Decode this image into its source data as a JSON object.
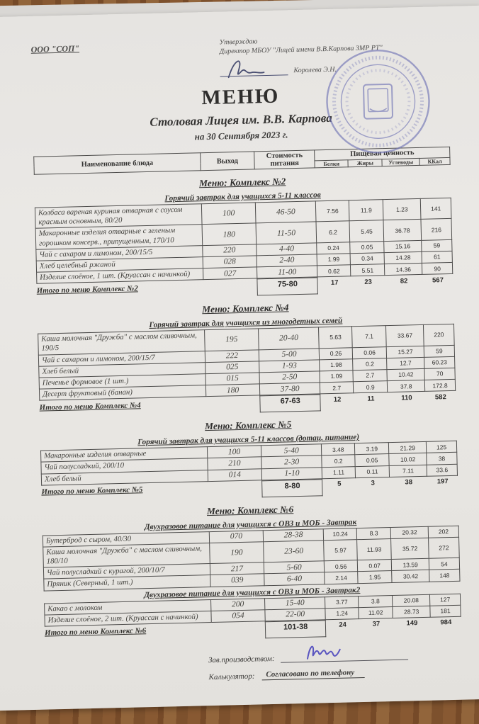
{
  "page": {
    "org": "ООО \"СОП\"",
    "approve": {
      "line1": "Утверждаю",
      "line2": "Директор МБОУ \"Лицей имени В.В.Карпова ЗМР РТ\"",
      "signed_by": "Королева Э.Н."
    },
    "title": "МЕНЮ",
    "subtitle": "Столовая Лицея им. В.В. Карпова",
    "date_line": "на 30 Сентября 2023 г."
  },
  "table_header": {
    "name": "Наименование блюда",
    "out": "Выход",
    "cost": "Стоимость питания",
    "nutrition": "Пищевая ценность",
    "nutrition_cols": [
      "Белки",
      "Жиры",
      "Углеводы",
      "ККал"
    ]
  },
  "menus": [
    {
      "title": "Меню: Комплекс №2",
      "sections": [
        {
          "subtitle": "Горячий завтрак для учащихся 5-11 классов",
          "rows": [
            [
              "Колбаса вареная куриная отварная с соусом красным основным, 80/20",
              "100",
              "46-50",
              "7.56",
              "11.9",
              "1.23",
              "141"
            ],
            [
              "Макаронные изделия отварные с зеленым горошком консерв., припущенным, 170/10",
              "180",
              "11-50",
              "6.2",
              "5.45",
              "36.78",
              "216"
            ],
            [
              "Чай с сахаром и лимоном, 200/15/5",
              "220",
              "4-40",
              "0.24",
              "0.05",
              "15.16",
              "59"
            ],
            [
              "Хлеб  целебный ржаной",
              "028",
              "2-40",
              "1.99",
              "0.34",
              "14.28",
              "61"
            ],
            [
              "Изделие слоёное, 1 шт. (Круассан с начинкой)",
              "027",
              "11-00",
              "0.62",
              "5.51",
              "14.36",
              "90"
            ]
          ]
        }
      ],
      "total": {
        "label": "Итого по меню Комплекс №2",
        "cost": "75-80",
        "values": [
          "17",
          "23",
          "82",
          "567"
        ]
      }
    },
    {
      "title": "Меню: Комплекс №4",
      "sections": [
        {
          "subtitle": "Горячий завтрак для учащихся из многодетных семей",
          "rows": [
            [
              "Каша молочная \"Дружба\" с маслом сливочным, 190/5",
              "195",
              "20-40",
              "5.63",
              "7.1",
              "33.67",
              "220"
            ],
            [
              "Чай с сахаром и лимоном, 200/15/7",
              "222",
              "5-00",
              "0.26",
              "0.06",
              "15.27",
              "59"
            ],
            [
              "Хлеб белый",
              "025",
              "1-93",
              "1.98",
              "0.2",
              "12.7",
              "60.23"
            ],
            [
              "Печенье формовое (1 шт.)",
              "015",
              "2-50",
              "1.09",
              "2.7",
              "10.42",
              "70"
            ],
            [
              "Десерт фруктовый (банан)",
              "180",
              "37-80",
              "2.7",
              "0.9",
              "37.8",
              "172.8"
            ]
          ]
        }
      ],
      "total": {
        "label": "Итого по меню Комплекс №4",
        "cost": "67-63",
        "values": [
          "12",
          "11",
          "110",
          "582"
        ]
      }
    },
    {
      "title": "Меню: Комплекс №5",
      "sections": [
        {
          "subtitle": "Горячий завтрак для учащихся 5-11 классов (дотац. питание)",
          "rows": [
            [
              "Макаронные изделия отварные",
              "100",
              "5-40",
              "3.48",
              "3.19",
              "21.29",
              "125"
            ],
            [
              "Чай полусладкий, 200/10",
              "210",
              "2-30",
              "0.2",
              "0.05",
              "10.02",
              "38"
            ],
            [
              "Хлеб белый",
              "014",
              "1-10",
              "1.11",
              "0.11",
              "7.11",
              "33.6"
            ]
          ]
        }
      ],
      "total": {
        "label": "Итого по меню Комплекс №5",
        "cost": "8-80",
        "values": [
          "5",
          "3",
          "38",
          "197"
        ]
      }
    },
    {
      "title": "Меню: Комплекс №6",
      "sections": [
        {
          "subtitle": "Двухразовое питание для учащихся с ОВЗ и МОБ - Завтрак",
          "rows": [
            [
              "Бутерброд с сыром, 40/30",
              "070",
              "28-38",
              "10.24",
              "8.3",
              "20.32",
              "202"
            ],
            [
              "Каша молочная \"Дружба\" с маслом сливочным, 180/10",
              "190",
              "23-60",
              "5.97",
              "11.93",
              "35.72",
              "272"
            ],
            [
              "Чай полусладкий с курагой, 200/10/7",
              "217",
              "5-60",
              "0.56",
              "0.07",
              "13.59",
              "54"
            ],
            [
              "Пряник (Северный, 1 шт.)",
              "039",
              "6-40",
              "2.14",
              "1.95",
              "30.42",
              "148"
            ]
          ]
        },
        {
          "subtitle": "Двухразовое питание для учащихся с ОВЗ и МОБ - Завтрак2",
          "rows": [
            [
              "Какао с  молоком",
              "200",
              "15-40",
              "3.77",
              "3.8",
              "20.08",
              "127"
            ],
            [
              "Изделие слоёное, 2 шт. (Круассан с начинкой)",
              "054",
              "22-00",
              "1.24",
              "11.02",
              "28.73",
              "181"
            ]
          ]
        }
      ],
      "total": {
        "label": "Итого по меню Комплекс №6",
        "cost": "101-38",
        "values": [
          "24",
          "37",
          "149",
          "984"
        ]
      }
    }
  ],
  "footer": {
    "manager_label": "Зав.производством:",
    "calculator_label": "Калькулятор:",
    "calculator_value": "Согласовано по телефону"
  },
  "colors": {
    "stamp": "#6d71b4",
    "signature_ink": "#5a55c0",
    "director_ink": "#4a4f72",
    "paper": "#e9e7e4",
    "wood": "#8a5a33"
  }
}
